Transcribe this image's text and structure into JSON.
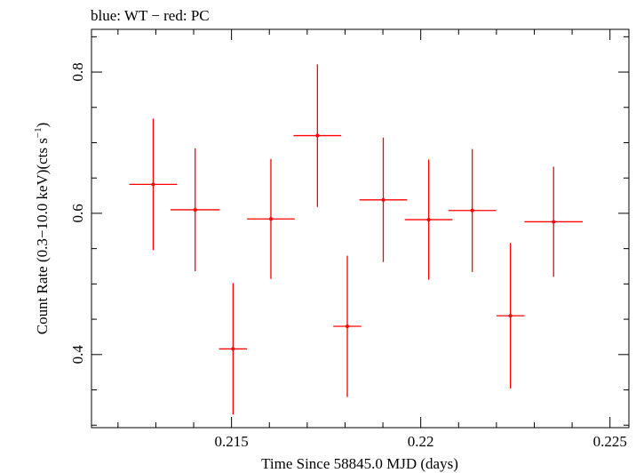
{
  "chart_data": {
    "type": "scatter",
    "title": "blue: WT − red: PC",
    "xlabel": "Time Since 58845.0 MJD (days)",
    "ylabel_main": "Count Rate (0.3−10.0 keV)(cts s",
    "ylabel_sup": "−1",
    "ylabel_close": ")",
    "xlim": [
      0.2113,
      0.2255
    ],
    "ylim": [
      0.2965,
      0.8605
    ],
    "x_ticks": [
      {
        "value": 0.215,
        "label": "0.215"
      },
      {
        "value": 0.22,
        "label": "0.22"
      },
      {
        "value": 0.225,
        "label": "0.225"
      }
    ],
    "y_ticks": [
      {
        "value": 0.4,
        "label": "0.4"
      },
      {
        "value": 0.6,
        "label": "0.6"
      },
      {
        "value": 0.8,
        "label": "0.8"
      }
    ],
    "series": [
      {
        "color": "#ff0000",
        "points": [
          {
            "x": 0.21293,
            "xerr": 0.00063,
            "y": 0.641,
            "yerr": 0.093
          },
          {
            "x": 0.21404,
            "xerr": 0.00065,
            "y": 0.605,
            "yerr": 0.087
          },
          {
            "x": 0.21504,
            "xerr": 0.00037,
            "y": 0.408,
            "yerr": 0.093
          },
          {
            "x": 0.21604,
            "xerr": 0.00063,
            "y": 0.592,
            "yerr": 0.085
          },
          {
            "x": 0.21727,
            "xerr": 0.00063,
            "y": 0.71,
            "yerr": 0.101
          },
          {
            "x": 0.21806,
            "xerr": 0.00037,
            "y": 0.44,
            "yerr": 0.1
          },
          {
            "x": 0.21901,
            "xerr": 0.00063,
            "y": 0.619,
            "yerr": 0.088
          },
          {
            "x": 0.22021,
            "xerr": 0.00063,
            "y": 0.591,
            "yerr": 0.085
          },
          {
            "x": 0.22136,
            "xerr": 0.00063,
            "y": 0.604,
            "yerr": 0.087
          },
          {
            "x": 0.22237,
            "xerr": 0.00037,
            "y": 0.455,
            "yerr": 0.103
          },
          {
            "x": 0.22351,
            "xerr": 0.00077,
            "y": 0.588,
            "yerr": 0.078
          }
        ]
      }
    ]
  }
}
